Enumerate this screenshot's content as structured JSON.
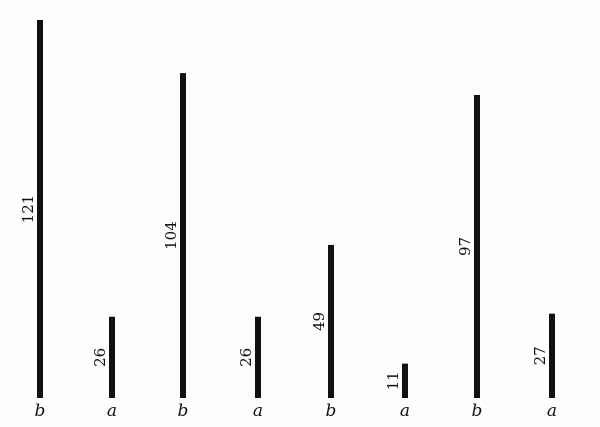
{
  "chart_data": {
    "type": "bar",
    "orientation": "vertical",
    "categories": [
      "b",
      "a",
      "b",
      "a",
      "b",
      "a",
      "b",
      "a"
    ],
    "values": [
      121,
      26,
      104,
      26,
      49,
      11,
      97,
      27
    ],
    "data_labels": [
      "121",
      "26",
      "104",
      "26",
      "49",
      "11",
      "97",
      "27"
    ],
    "title": "",
    "xlabel": "",
    "ylabel": "",
    "ylim": [
      0,
      121
    ],
    "grid": false,
    "legend": "none",
    "bar_color": "#111111",
    "background": "#fdfdfb"
  }
}
